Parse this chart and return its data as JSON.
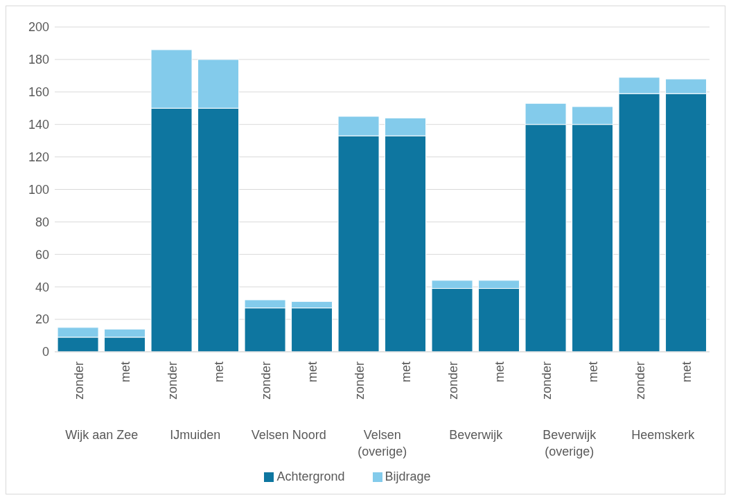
{
  "chart_data": {
    "type": "bar",
    "stacked": true,
    "categories": [
      "zonder",
      "met",
      "zonder",
      "met",
      "zonder",
      "met",
      "zonder",
      "met",
      "zonder",
      "met",
      "zonder",
      "met",
      "zonder",
      "met"
    ],
    "annotations": [
      "Wijk aan Zee",
      "IJmuiden",
      "Velsen Noord",
      "Velsen (overige)",
      "Beverwijk",
      "Beverwijk (overige)",
      "Heemskerk"
    ],
    "series": [
      {
        "name": "Achtergrond",
        "color": "#0e76a0",
        "values": [
          9,
          9,
          150,
          150,
          27,
          27,
          133,
          133,
          39,
          39,
          140,
          140,
          159,
          159
        ]
      },
      {
        "name": "Bijdrage",
        "color": "#83cbeb",
        "values": [
          6,
          5,
          36,
          30,
          5,
          4,
          12,
          11,
          5,
          5,
          13,
          11,
          10,
          9
        ]
      }
    ],
    "ylim": [
      0,
      200
    ],
    "yticks": [
      0,
      20,
      40,
      60,
      80,
      100,
      120,
      140,
      160,
      180,
      200
    ],
    "grid": "y",
    "legend": "bottom"
  }
}
